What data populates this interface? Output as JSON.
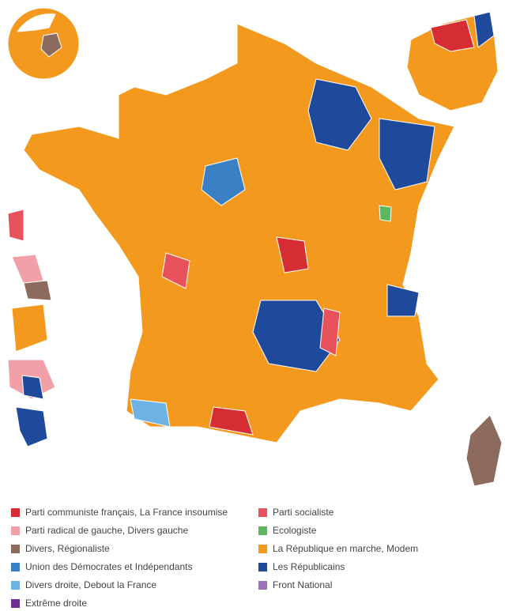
{
  "legend": [
    {
      "label": "Parti communiste français, La France insoumise",
      "color": "#d62d35"
    },
    {
      "label": "Parti socialiste",
      "color": "#e8525a"
    },
    {
      "label": "Parti radical de gauche, Divers gauche",
      "color": "#f2a0a8"
    },
    {
      "label": "Ecologiste",
      "color": "#5cb85c"
    },
    {
      "label": "Divers, Régionaliste",
      "color": "#8c6b5e"
    },
    {
      "label": "La République en marche, Modem",
      "color": "#f39a1e"
    },
    {
      "label": "Union des Démocrates et Indépendants",
      "color": "#3b7fc4"
    },
    {
      "label": "Les Républicains",
      "color": "#1f4a9b"
    },
    {
      "label": "Divers droite, Debout la France",
      "color": "#6db3e4"
    },
    {
      "label": "Front National",
      "color": "#a070b8"
    },
    {
      "label": "Extrême droite",
      "color": "#6b2f91"
    }
  ]
}
